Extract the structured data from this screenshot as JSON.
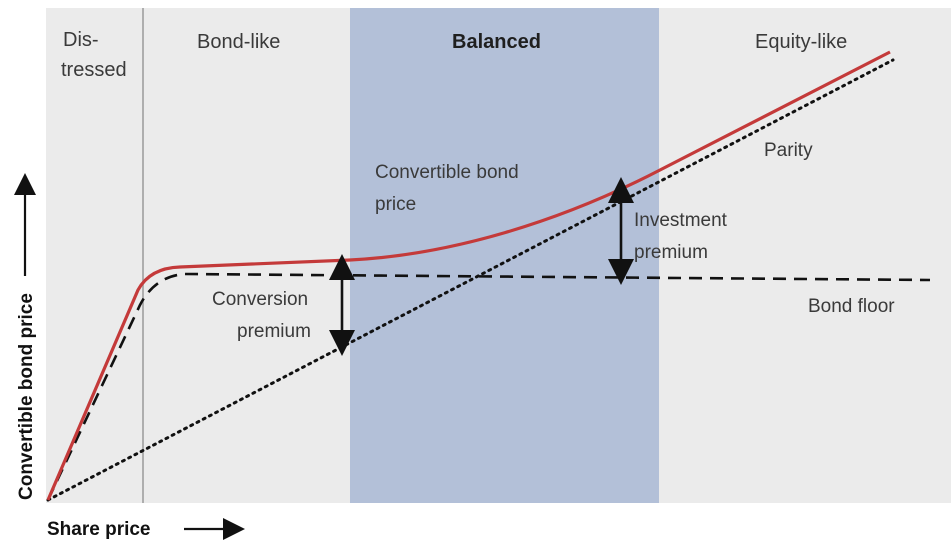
{
  "regions": {
    "distressed": [
      "Dis-",
      "tressed"
    ],
    "bond_like": "Bond-like",
    "balanced": "Balanced",
    "equity_like": "Equity-like"
  },
  "annotations": {
    "parity": "Parity",
    "convertible_bond_price": [
      "Convertible bond",
      "price"
    ],
    "investment_premium": [
      "Investment",
      "premium"
    ],
    "conversion_premium": [
      "Conversion",
      "premium"
    ],
    "bond_floor": "Bond floor"
  },
  "axes": {
    "y_label": "Convertible bond price",
    "x_label": "Share price"
  },
  "colors": {
    "background": "#ebebeb",
    "balanced": "#b3c0d8",
    "convertible_curve": "#c43a3a",
    "lines": "#111111",
    "divider": "#9a9a9a"
  }
}
